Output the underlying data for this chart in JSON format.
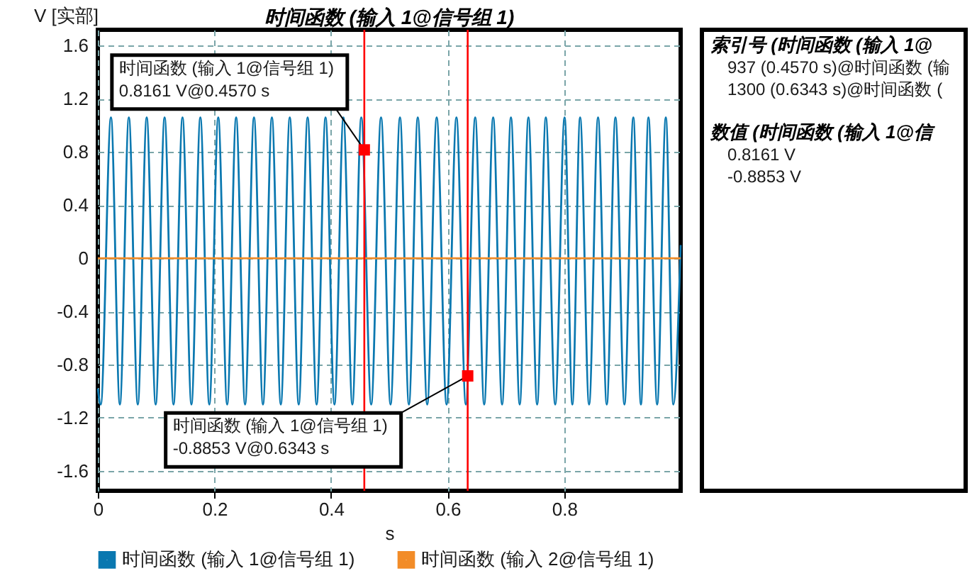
{
  "chart_data": [
    {
      "type": "line",
      "title": "时间函数 (输入 1@信号组 1)",
      "xlabel": "s",
      "ylabel": "V [实部]",
      "xlim": [
        0,
        0.9995
      ],
      "xticks": [
        0,
        0.2,
        0.4,
        0.6,
        0.8
      ],
      "ylim": [
        -1.75,
        1.72
      ],
      "yticks": [
        -1.6,
        -1.2,
        -0.8,
        -0.4,
        0,
        0.4,
        0.8,
        1.2,
        1.6
      ],
      "grid": true,
      "legend": "bottom",
      "series": [
        {
          "name": "时间函数 (输入 1@信号组 1)",
          "color": "#0a78b0",
          "x": [
            0,
            0.005,
            0.0225,
            0.0378,
            0.0532,
            0.0685,
            0.0838,
            0.0992,
            0.1145,
            0.1298,
            0.1452,
            0.1605,
            0.1758,
            0.1912,
            0.2065,
            0.2218,
            0.2372,
            0.2525,
            0.2678,
            0.2832,
            0.2985,
            0.3138,
            0.3292,
            0.3445,
            0.3598,
            0.3752,
            0.3905,
            0.4058,
            0.4212,
            0.4365,
            0.4518,
            0.4688,
            0.4857,
            0.502,
            0.5182,
            0.5335,
            0.5487,
            0.5649,
            0.5811,
            0.5981,
            0.615,
            0.6311,
            0.6472,
            0.6626,
            0.678,
            0.6933,
            0.7085,
            0.7235,
            0.7385,
            0.7534,
            0.7683,
            0.7844,
            0.8005,
            0.8138,
            0.8271,
            0.8425,
            0.8579,
            0.8728,
            0.8877,
            0.9031,
            0.9184,
            0.9314,
            0.9443,
            0.9592,
            0.9741,
            0.987,
            0.9995
          ],
          "values": [
            -0.98,
            -1.1,
            1.06,
            -1.1,
            1.06,
            -1.1,
            1.06,
            -1.1,
            1.06,
            -1.1,
            1.06,
            -1.1,
            1.06,
            -1.1,
            1.06,
            -1.1,
            1.06,
            -1.1,
            1.06,
            -1.1,
            1.06,
            -1.1,
            1.06,
            -1.1,
            1.06,
            -1.1,
            1.06,
            -1.1,
            1.06,
            -1.1,
            1.06,
            -1.1,
            1.06,
            -1.1,
            1.06,
            -1.1,
            1.06,
            -1.1,
            1.06,
            -1.1,
            1.06,
            -1.1,
            1.06,
            -1.1,
            1.06,
            -1.1,
            1.06,
            -1.1,
            1.06,
            -1.1,
            1.06,
            -1.1,
            1.06,
            -1.1,
            1.06,
            -1.1,
            1.06,
            -1.1,
            1.06,
            -1.1,
            1.06,
            -1.1,
            1.06,
            -1.1,
            1.06,
            -1.1,
            0.1
          ]
        },
        {
          "name": "时间函数 (输入 2@信号组 1)",
          "color": "#f28c28",
          "x": [
            0,
            0.9995
          ],
          "values": [
            0,
            0
          ]
        }
      ],
      "ref_lines": [
        {
          "axis": "x",
          "value": 0.457,
          "color": "#ff0000"
        },
        {
          "axis": "x",
          "value": 0.6343,
          "color": "#ff0000"
        }
      ],
      "annotations": [
        {
          "text": "时间函数 (输入 1@信号组 1)\n0.8161 V@0.4570 s",
          "x": 0.457,
          "y": 0.8161
        },
        {
          "text": "时间函数 (输入 1@信号组 1)\n-0.8853 V@0.6343 s",
          "x": 0.6343,
          "y": -0.8853
        }
      ]
    },
    {
      "type": "other",
      "annotations": [
        "索引号 (时间函数 (输入 1@",
        "937 (0.4570 s)@时间函数 (输",
        "1300 (0.6343 s)@时间函数 (",
        "数值 (时间函数 (输入 1@信",
        "0.8161 V",
        "-0.8853 V"
      ]
    }
  ]
}
